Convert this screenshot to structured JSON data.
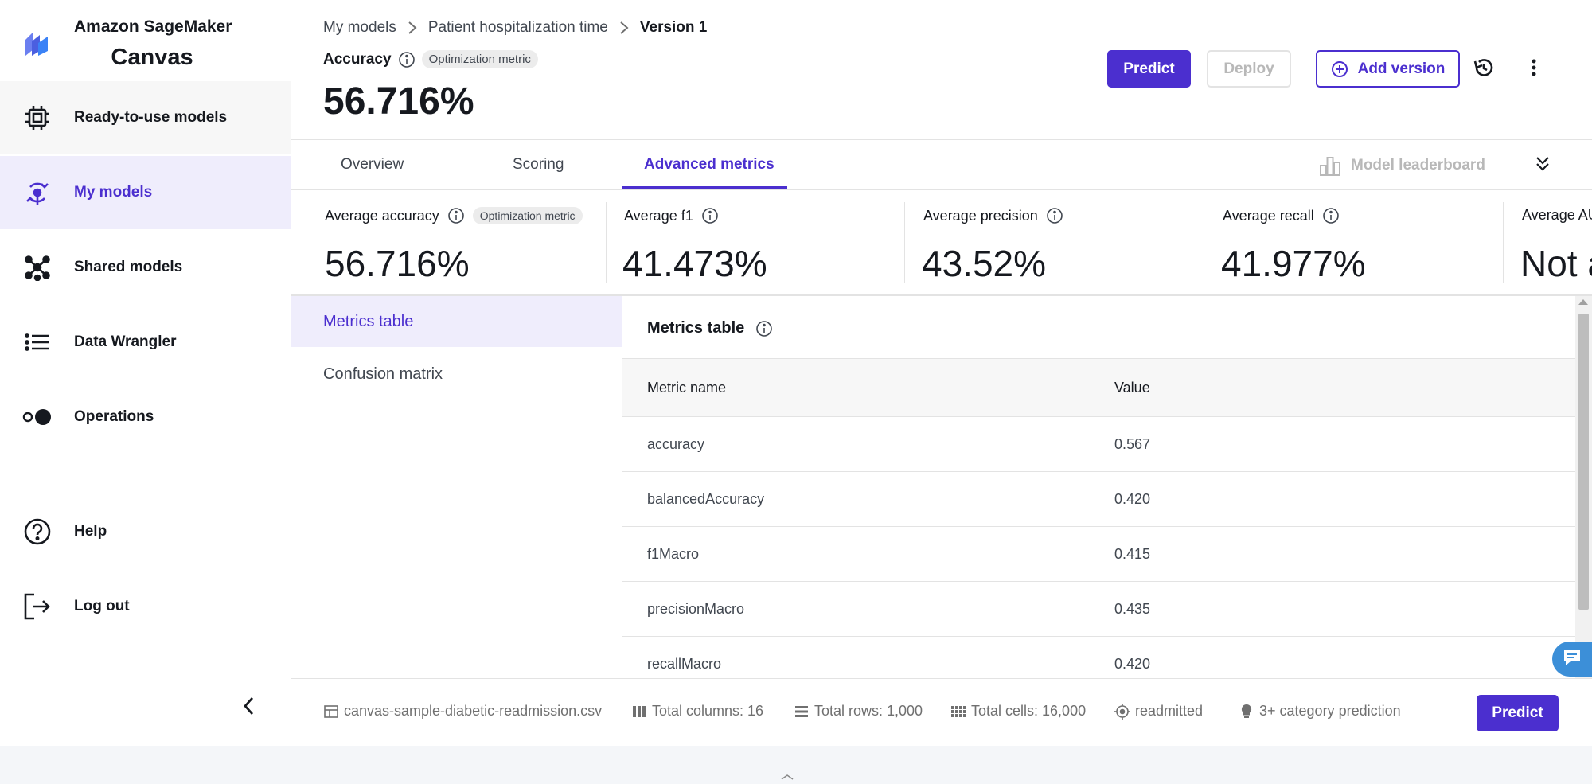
{
  "brand": {
    "line1": "Amazon SageMaker",
    "line2": "Canvas",
    "logo_icon": "sagemaker-canvas-logo"
  },
  "sidebar": {
    "items": [
      {
        "label": "Ready-to-use models",
        "icon": "chip-icon"
      },
      {
        "label": "My models",
        "icon": "models-icon"
      },
      {
        "label": "Shared models",
        "icon": "network-icon"
      },
      {
        "label": "Data Wrangler",
        "icon": "list-icon"
      },
      {
        "label": "Operations",
        "icon": "toggle-icon"
      },
      {
        "label": "Help",
        "icon": "help-icon"
      },
      {
        "label": "Log out",
        "icon": "logout-icon"
      }
    ],
    "collapse_icon": "chevron-left-icon"
  },
  "breadcrumb": {
    "items": [
      "My models",
      "Patient hospitalization time"
    ],
    "current": "Version 1"
  },
  "header": {
    "accuracy_label": "Accuracy",
    "badge": "Optimization metric",
    "accuracy_value": "56.716%",
    "predict_label": "Predict",
    "deploy_label": "Deploy",
    "add_version_label": "Add version"
  },
  "tabs": {
    "items": [
      "Overview",
      "Scoring",
      "Advanced metrics"
    ],
    "active": "Advanced metrics",
    "leaderboard_label": "Model leaderboard"
  },
  "kpis": [
    {
      "label": "Average accuracy",
      "badge": "Optimization metric",
      "value": "56.716%"
    },
    {
      "label": "Average f1",
      "value": "41.473%"
    },
    {
      "label": "Average precision",
      "value": "43.52%"
    },
    {
      "label": "Average recall",
      "value": "41.977%"
    },
    {
      "label": "Average AU",
      "value": "Not a"
    }
  ],
  "subnav": {
    "items": [
      "Metrics table",
      "Confusion matrix"
    ],
    "active": "Metrics table"
  },
  "metrics_table": {
    "title": "Metrics table",
    "columns": [
      "Metric name",
      "Value"
    ],
    "rows": [
      [
        "accuracy",
        "0.567"
      ],
      [
        "balancedAccuracy",
        "0.420"
      ],
      [
        "f1Macro",
        "0.415"
      ],
      [
        "precisionMacro",
        "0.435"
      ],
      [
        "recallMacro",
        "0.420"
      ]
    ]
  },
  "footer": {
    "dataset": "canvas-sample-diabetic-readmission.csv",
    "columns": "Total columns: 16",
    "rows": "Total rows: 1,000",
    "cells": "Total cells: 16,000",
    "target": "readmitted",
    "model_type": "3+ category prediction",
    "predict_label": "Predict"
  },
  "colors": {
    "accent": "#4b2fcf",
    "active_bg": "#efedfc",
    "chat": "#3c8fd8"
  }
}
